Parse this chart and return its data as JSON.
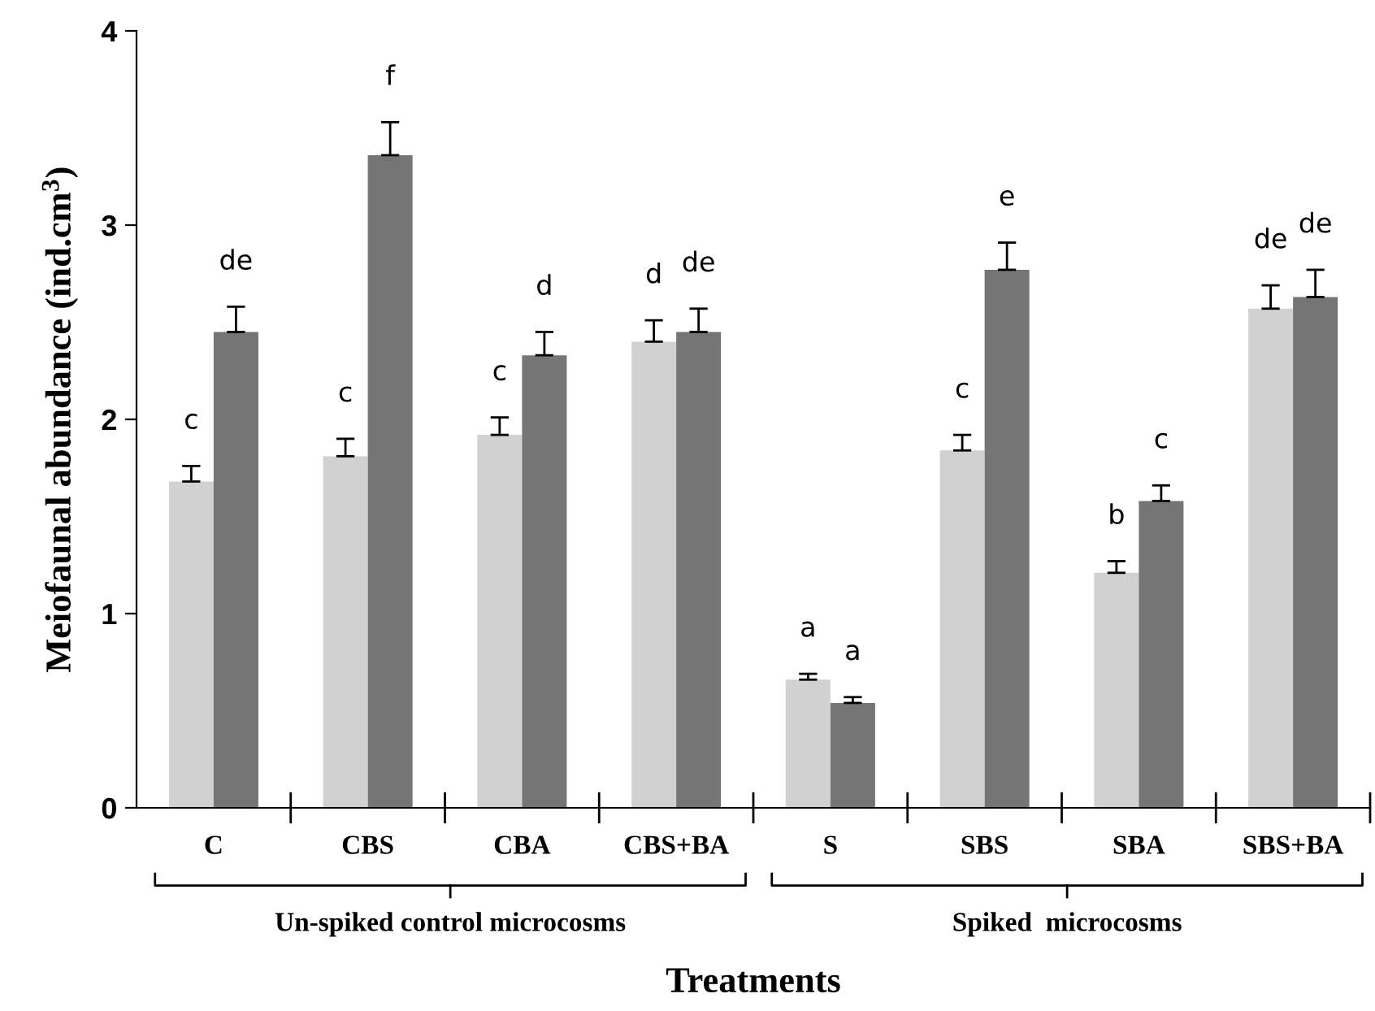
{
  "chart_data": {
    "type": "bar",
    "xlabel": "Treatments",
    "ylabel": "Meiofaunal abundance (ind.cm$^{3}$)",
    "categories": [
      "C",
      "CBS",
      "CBA",
      "CBS+BA",
      "S",
      "SBS",
      "SBA",
      "SBS+BA"
    ],
    "series": [
      {
        "color": "#d0d1d0",
        "values": [
          1.68,
          1.81,
          1.92,
          2.4,
          0.66,
          1.84,
          1.21,
          2.57
        ],
        "errors": [
          [
            1.68,
            1.76
          ],
          [
            1.81,
            1.9
          ],
          [
            1.92,
            2.01
          ],
          [
            2.4,
            2.51
          ],
          [
            0.66,
            0.69
          ],
          [
            1.84,
            1.92
          ],
          [
            1.21,
            1.27
          ],
          [
            2.57,
            2.69
          ]
        ]
      },
      {
        "color": "#757575",
        "values": [
          2.45,
          3.36,
          2.33,
          2.45,
          0.54,
          2.77,
          1.58,
          2.63
        ],
        "errors": [
          [
            2.45,
            2.58
          ],
          [
            3.36,
            3.53
          ],
          [
            2.33,
            2.45
          ],
          [
            2.45,
            2.57
          ],
          [
            0.54,
            0.57
          ],
          [
            2.77,
            2.91
          ],
          [
            1.58,
            1.66
          ],
          [
            2.63,
            2.77
          ]
        ]
      }
    ],
    "ylim": [
      0,
      4
    ],
    "yticks": [
      0,
      1,
      2,
      3,
      4
    ],
    "grid": false,
    "annotations": [
      "c",
      "de",
      "c",
      "f",
      "c",
      "d",
      "d",
      "de",
      "a",
      "a",
      "c",
      "e",
      "b",
      "c",
      "de",
      "de",
      "Un-spiked control microcosms",
      "Spiked  microcosms"
    ]
  }
}
